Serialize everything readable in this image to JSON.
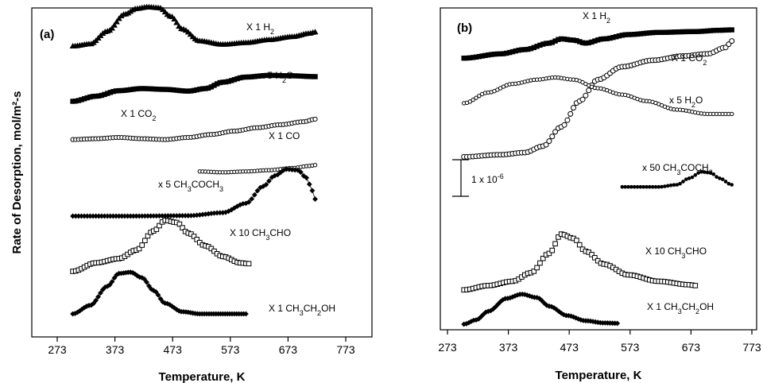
{
  "chart_data": [
    {
      "type": "line",
      "panel_label": "(a)",
      "xlabel": "Temperature, K",
      "ylabel": "Rate of Desorption, mol/m²-s",
      "xlim": [
        273,
        773
      ],
      "x_ticks": [
        "273",
        "373",
        "473",
        "573",
        "673",
        "773"
      ],
      "y_ticks_shown": false,
      "series": [
        {
          "name": "X 1  H₂",
          "label_parts": [
            "X 1  H",
            "2",
            ""
          ],
          "marker": "triangle",
          "offset": 6.3,
          "points": [
            [
              300,
              0
            ],
            [
              330,
              0.05
            ],
            [
              360,
              0.35
            ],
            [
              390,
              0.75
            ],
            [
              410,
              0.88
            ],
            [
              430,
              0.92
            ],
            [
              450,
              0.9
            ],
            [
              470,
              0.7
            ],
            [
              490,
              0.4
            ],
            [
              520,
              0.12
            ],
            [
              560,
              0.04
            ],
            [
              600,
              0.08
            ],
            [
              640,
              0.15
            ],
            [
              680,
              0.22
            ],
            [
              710,
              0.3
            ],
            [
              720,
              0.33
            ]
          ]
        },
        {
          "name": "x 5 H₂O",
          "label_parts": [
            "x 5 H",
            "2",
            "O"
          ],
          "marker": "square",
          "offset": 5.0,
          "points": [
            [
              300,
              0
            ],
            [
              340,
              0.12
            ],
            [
              380,
              0.25
            ],
            [
              420,
              0.3
            ],
            [
              460,
              0.28
            ],
            [
              500,
              0.24
            ],
            [
              530,
              0.3
            ],
            [
              560,
              0.45
            ],
            [
              600,
              0.57
            ],
            [
              640,
              0.61
            ],
            [
              680,
              0.6
            ],
            [
              720,
              0.58
            ]
          ]
        },
        {
          "name": "X 1 CO₂",
          "label_parts": [
            "X 1 CO",
            "2",
            ""
          ],
          "marker": "circle",
          "offset": 4.1,
          "points": [
            [
              300,
              0
            ],
            [
              340,
              0.02
            ],
            [
              380,
              0.05
            ],
            [
              420,
              0.02
            ],
            [
              460,
              0.0
            ],
            [
              500,
              0.05
            ],
            [
              540,
              0.12
            ],
            [
              580,
              0.2
            ],
            [
              620,
              0.28
            ],
            [
              660,
              0.35
            ],
            [
              700,
              0.42
            ],
            [
              720,
              0.48
            ]
          ]
        },
        {
          "name": "X 1 CO",
          "label_parts": [
            "X 1 CO",
            "",
            ""
          ],
          "marker": "circle-small",
          "offset": 3.35,
          "points": [
            [
              520,
              0
            ],
            [
              560,
              -0.02
            ],
            [
              600,
              0.0
            ],
            [
              640,
              0.03
            ],
            [
              680,
              0.08
            ],
            [
              710,
              0.13
            ],
            [
              720,
              0.15
            ]
          ]
        },
        {
          "name": "x 5 CH₃COCH₃",
          "label_parts": [
            "x 5 CH",
            "3",
            "COCH",
            "3",
            ""
          ],
          "marker": "diamond",
          "offset": 2.3,
          "points": [
            [
              300,
              0
            ],
            [
              400,
              0
            ],
            [
              500,
              0.01
            ],
            [
              560,
              0.08
            ],
            [
              600,
              0.3
            ],
            [
              630,
              0.7
            ],
            [
              650,
              0.95
            ],
            [
              670,
              1.1
            ],
            [
              690,
              1.08
            ],
            [
              705,
              0.9
            ],
            [
              715,
              0.6
            ],
            [
              720,
              0.4
            ]
          ]
        },
        {
          "name": "X 10 CH₃CHO",
          "label_parts": [
            "X 10 CH",
            "3",
            "CHO",
            "",
            ""
          ],
          "marker": "square-open",
          "offset": 1.0,
          "points": [
            [
              300,
              0
            ],
            [
              340,
              0.2
            ],
            [
              380,
              0.3
            ],
            [
              410,
              0.5
            ],
            [
              440,
              0.95
            ],
            [
              460,
              1.2
            ],
            [
              480,
              1.15
            ],
            [
              500,
              0.9
            ],
            [
              530,
              0.6
            ],
            [
              560,
              0.35
            ],
            [
              590,
              0.2
            ],
            [
              605,
              0.18
            ]
          ]
        },
        {
          "name": "X 1  CH₃CH₂OH",
          "label_parts": [
            "X 1  CH",
            "3",
            "CH",
            "2",
            "OH"
          ],
          "marker": "diamond-dense",
          "offset": 0.0,
          "points": [
            [
              300,
              0
            ],
            [
              330,
              0.2
            ],
            [
              360,
              0.65
            ],
            [
              380,
              0.95
            ],
            [
              400,
              0.98
            ],
            [
              420,
              0.85
            ],
            [
              440,
              0.55
            ],
            [
              460,
              0.25
            ],
            [
              490,
              0.05
            ],
            [
              520,
              0.0
            ],
            [
              560,
              0.0
            ],
            [
              600,
              0.0
            ]
          ]
        }
      ]
    },
    {
      "type": "line",
      "panel_label": "(b)",
      "xlabel": "Temperature, K",
      "ylabel": "",
      "xlim": [
        273,
        773
      ],
      "x_ticks": [
        "273",
        "373",
        "473",
        "573",
        "673",
        "773"
      ],
      "y_ticks_shown": false,
      "scale_bar_label_parts": [
        "1 x 10",
        "-6"
      ],
      "series": [
        {
          "name": "X 1  H₂",
          "label_parts": [
            "X 1  H",
            "2",
            ""
          ],
          "marker": "square",
          "offset": 6.2,
          "points": [
            [
              300,
              0
            ],
            [
              360,
              0.1
            ],
            [
              400,
              0.2
            ],
            [
              440,
              0.35
            ],
            [
              460,
              0.45
            ],
            [
              480,
              0.42
            ],
            [
              500,
              0.35
            ],
            [
              530,
              0.45
            ],
            [
              570,
              0.55
            ],
            [
              620,
              0.6
            ],
            [
              680,
              0.62
            ],
            [
              720,
              0.65
            ],
            [
              740,
              0.66
            ]
          ]
        },
        {
          "name": "X 1 CO₂",
          "label_parts": [
            "X 1 CO",
            "2",
            ""
          ],
          "marker": "circle-open",
          "offset": 3.9,
          "points": [
            [
              300,
              0
            ],
            [
              360,
              0.05
            ],
            [
              400,
              0.1
            ],
            [
              430,
              0.25
            ],
            [
              460,
              0.7
            ],
            [
              490,
              1.3
            ],
            [
              520,
              1.8
            ],
            [
              560,
              2.1
            ],
            [
              610,
              2.25
            ],
            [
              660,
              2.35
            ],
            [
              700,
              2.4
            ],
            [
              730,
              2.55
            ],
            [
              740,
              2.7
            ]
          ]
        },
        {
          "name": "x 5 H₂O",
          "label_parts": [
            "x 5 H",
            "2",
            "O"
          ],
          "marker": "circle-small",
          "offset": 5.15,
          "points": [
            [
              300,
              0
            ],
            [
              340,
              0.25
            ],
            [
              380,
              0.45
            ],
            [
              420,
              0.55
            ],
            [
              450,
              0.6
            ],
            [
              480,
              0.55
            ],
            [
              520,
              0.35
            ],
            [
              560,
              0.2
            ],
            [
              600,
              0.05
            ],
            [
              650,
              -0.15
            ],
            [
              700,
              -0.25
            ],
            [
              740,
              -0.25
            ]
          ]
        },
        {
          "name": "x 50 CH₃COCH₃",
          "label_parts": [
            "x 50 CH",
            "3",
            "COCH",
            "3",
            ""
          ],
          "marker": "dot",
          "offset": 3.2,
          "points": [
            [
              560,
              0
            ],
            [
              620,
              0.0
            ],
            [
              650,
              0.05
            ],
            [
              670,
              0.2
            ],
            [
              690,
              0.35
            ],
            [
              705,
              0.33
            ],
            [
              720,
              0.2
            ],
            [
              740,
              0.05
            ]
          ]
        },
        {
          "name": "X 10 CH₃CHO",
          "label_parts": [
            "X 10 CH",
            "3",
            "CHO",
            "",
            ""
          ],
          "marker": "square-open",
          "offset": 0.8,
          "points": [
            [
              300,
              0
            ],
            [
              340,
              0.1
            ],
            [
              380,
              0.2
            ],
            [
              410,
              0.4
            ],
            [
              440,
              0.85
            ],
            [
              460,
              1.3
            ],
            [
              480,
              1.2
            ],
            [
              500,
              0.9
            ],
            [
              530,
              0.6
            ],
            [
              570,
              0.35
            ],
            [
              620,
              0.2
            ],
            [
              670,
              0.12
            ],
            [
              680,
              0.1
            ]
          ]
        },
        {
          "name": "X 1  CH₃CH₂OH",
          "label_parts": [
            "X 1  CH",
            "3",
            "CH",
            "2",
            "OH"
          ],
          "marker": "diamond-dense",
          "offset": 0.0,
          "points": [
            [
              300,
              0
            ],
            [
              320,
              0.1
            ],
            [
              340,
              0.3
            ],
            [
              370,
              0.6
            ],
            [
              395,
              0.7
            ],
            [
              420,
              0.62
            ],
            [
              440,
              0.42
            ],
            [
              470,
              0.2
            ],
            [
              500,
              0.08
            ],
            [
              530,
              0.03
            ],
            [
              555,
              0.02
            ]
          ]
        }
      ]
    }
  ]
}
